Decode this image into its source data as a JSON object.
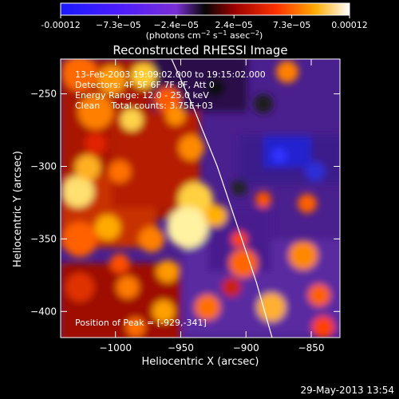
{
  "colorbar": {
    "tick_labels": [
      "-0.00012",
      "−7.3e−05",
      "−2.4e−05",
      "2.4e−05",
      "7.3e−05",
      "0.00012"
    ],
    "units_main": "(photons cm",
    "units_exp1": "−2",
    "units_s": " s",
    "units_exp2": "−1",
    "units_asec": " asec",
    "units_exp3": "−2",
    "units_close": ")"
  },
  "footer": {
    "date": "29-May-2013 13:54"
  },
  "chart_data": {
    "type": "heatmap",
    "title": "Reconstructed RHESSI Image",
    "xlabel": "Heliocentric X (arcsec)",
    "ylabel": "Heliocentric Y (arcsec)",
    "xlim": [
      -1042,
      -828
    ],
    "ylim": [
      -418,
      -226
    ],
    "x_ticks": [
      -1000,
      -950,
      -900,
      -850
    ],
    "y_ticks": [
      -400,
      -350,
      -300,
      -250
    ],
    "x_tick_labels": [
      "−1000",
      "−950",
      "−900",
      "−850"
    ],
    "y_tick_labels": [
      "−400",
      "−350",
      "−300",
      "−250"
    ],
    "colorscale": "rainbow-heat",
    "color_range": [
      -0.00012,
      0.00012
    ],
    "annotations": [
      "13-Feb-2003 19:09:02.000 to 19:15:02.000",
      "Detectors: 4F 5F 6F 7F 8F, Att 0",
      "Energy Range: 12.0 - 25.0 keV",
      "Clean    Total counts: 3.75E+03",
      "Position of Peak = [-929,-341]"
    ],
    "peak": [
      -929,
      -341
    ],
    "limb_curve": [
      [
        -957,
        -226
      ],
      [
        -940,
        -260
      ],
      [
        -922,
        -300
      ],
      [
        -907,
        -340
      ],
      [
        -892,
        -380
      ],
      [
        -880,
        -418
      ]
    ]
  }
}
